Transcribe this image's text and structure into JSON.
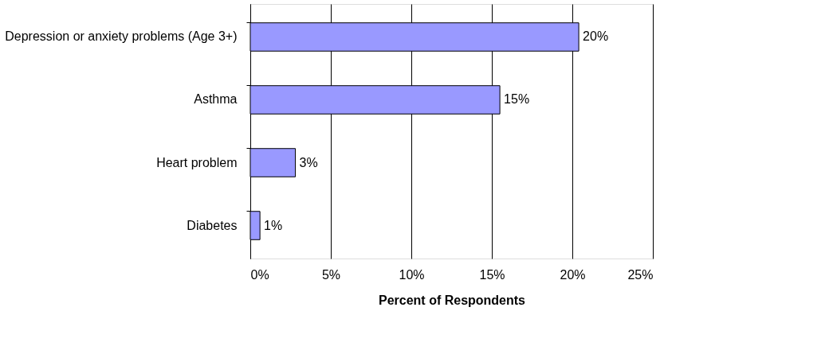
{
  "chart_data": {
    "type": "bar",
    "orientation": "horizontal",
    "xlabel": "Percent of Respondents",
    "categories": [
      "Depression or anxiety problems (Age 3+)",
      "Asthma",
      "Heart problem",
      "Diabetes"
    ],
    "values": [
      20.4,
      15.5,
      2.8,
      0.6
    ],
    "value_labels": [
      "20%",
      "15%",
      "3%",
      "1%"
    ],
    "color": "#9999ff",
    "xlim": [
      0,
      25
    ],
    "xticks": [
      {
        "value": 0,
        "label": "0%"
      },
      {
        "value": 5,
        "label": "5%"
      },
      {
        "value": 10,
        "label": "10%"
      },
      {
        "value": 15,
        "label": "15%"
      },
      {
        "value": 20,
        "label": "20%"
      },
      {
        "value": 25,
        "label": "25%"
      }
    ],
    "grid": "x"
  }
}
